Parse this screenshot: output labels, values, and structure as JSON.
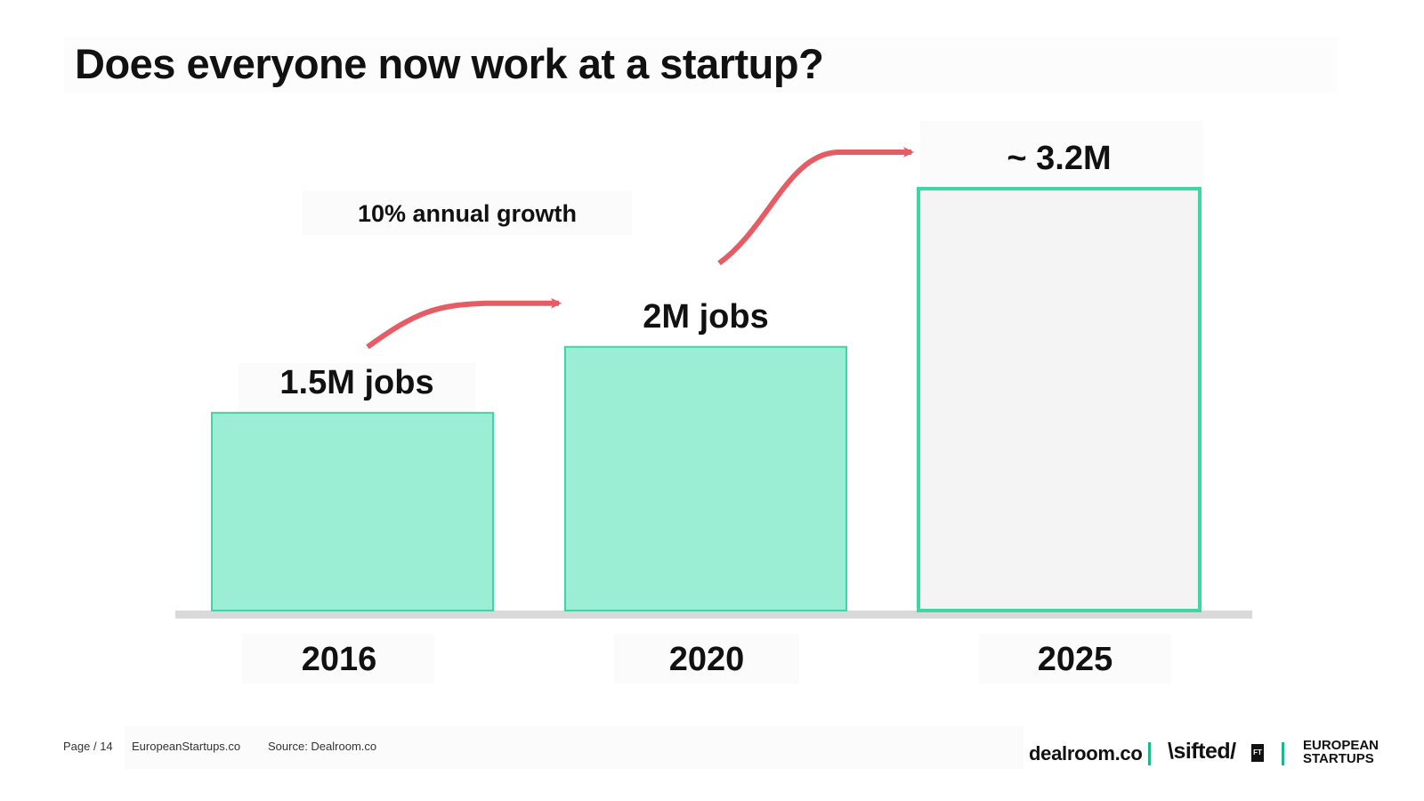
{
  "slide": {
    "title": "Does everyone now work at a startup?"
  },
  "footer": {
    "page": "Page / 14",
    "site": "EuropeanStartups.co",
    "source": "Source: Dealroom.co"
  },
  "logos": {
    "dealroom": "dealroom.co",
    "sifted": "\\sifted/",
    "ft": "FT",
    "european_startups_line1": "EUROPEAN",
    "european_startups_line2": "STARTUPS"
  },
  "colors": {
    "bar_fill": "#9beed3",
    "bar_stroke": "#3dd6a5",
    "projected_fill": "#f4f4f4",
    "arrow": "#e55c65",
    "baseline": "#d9d9d9",
    "logo_separator": "#1fb58f"
  },
  "chart_data": {
    "type": "bar",
    "categories": [
      "2016",
      "2020",
      "2025"
    ],
    "values": [
      1.5,
      2,
      3.2
    ],
    "unit": "M jobs",
    "data_labels": [
      "1.5M jobs",
      "2M jobs",
      "~ 3.2M"
    ],
    "projected": [
      false,
      false,
      true
    ],
    "annotation": "10% annual growth",
    "ylim": [
      0,
      3.2
    ],
    "title": "",
    "xlabel": "",
    "ylabel": "",
    "grid": false,
    "legend": "none"
  }
}
